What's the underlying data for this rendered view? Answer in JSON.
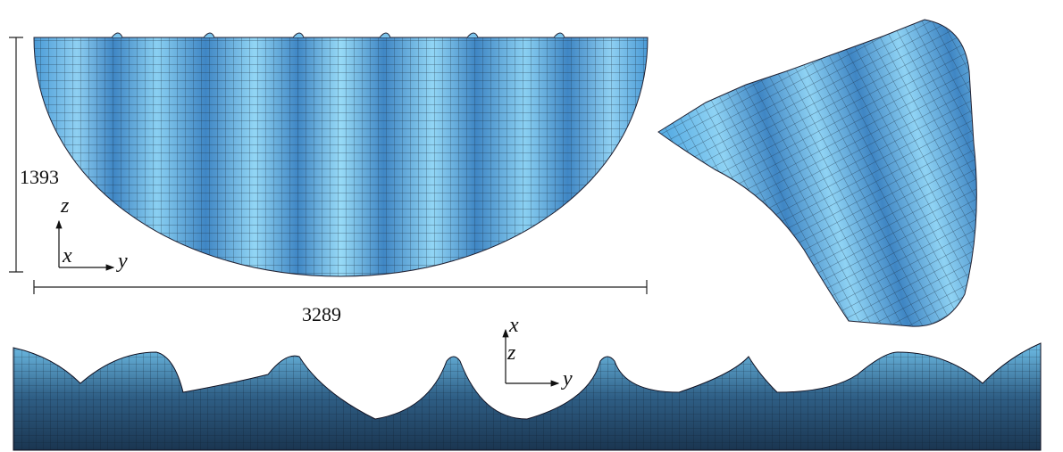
{
  "dimensions": {
    "height": 1393,
    "width": 3289
  },
  "axes": [
    {
      "vertical": "z",
      "depth": "x",
      "horizontal": "y"
    },
    {
      "vertical": "x",
      "depth": "z",
      "horizontal": "y"
    }
  ]
}
